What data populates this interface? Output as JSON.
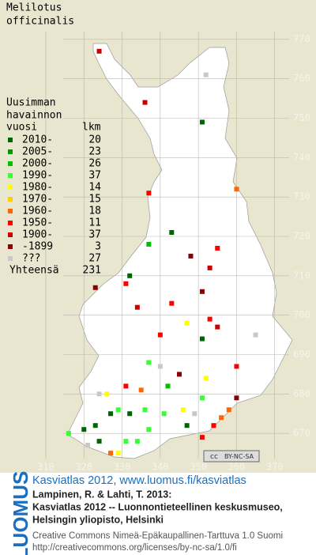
{
  "map": {
    "title": [
      "Melilotus",
      "officinalis"
    ],
    "xlim": [
      298,
      380
    ],
    "ylim": [
      660,
      780
    ],
    "xticks": [
      310,
      320,
      330,
      340,
      350,
      360,
      370
    ],
    "yticks": [
      670,
      680,
      690,
      700,
      710,
      720,
      730,
      740,
      750,
      760,
      770
    ],
    "grid": true,
    "legend": {
      "title": [
        "Uusimman",
        "havainnon",
        "vuosi"
      ],
      "count_header": "lkm",
      "items": [
        {
          "label": "2010-",
          "count": 20,
          "color": "#006400"
        },
        {
          "label": "2005-",
          "count": 23,
          "color": "#009900"
        },
        {
          "label": "2000-",
          "count": 26,
          "color": "#00c000"
        },
        {
          "label": "1990-",
          "count": 37,
          "color": "#33ff33"
        },
        {
          "label": "1980-",
          "count": 14,
          "color": "#ffff00"
        },
        {
          "label": "1970-",
          "count": 15,
          "color": "#ffcc00"
        },
        {
          "label": "1960-",
          "count": 18,
          "color": "#ff6600"
        },
        {
          "label": "1950-",
          "count": 11,
          "color": "#ff0000"
        },
        {
          "label": "1900-",
          "count": 37,
          "color": "#cc0000"
        },
        {
          "label": "-1899",
          "count": 3,
          "color": "#8b0000"
        },
        {
          "label": "???",
          "count": 27,
          "color": "#c8c8c8"
        }
      ],
      "total_label": "Yhteensä",
      "total": 231
    },
    "points": [
      [
        324,
        767,
        8
      ],
      [
        352,
        761,
        10
      ],
      [
        336,
        754,
        8
      ],
      [
        351,
        749,
        0
      ],
      [
        360,
        732,
        6
      ],
      [
        337,
        731,
        7
      ],
      [
        343,
        721,
        0
      ],
      [
        337,
        718,
        2
      ],
      [
        355,
        717,
        7
      ],
      [
        353,
        712,
        8
      ],
      [
        348,
        715,
        9
      ],
      [
        331,
        708,
        7
      ],
      [
        332,
        710,
        0
      ],
      [
        323,
        707,
        9
      ],
      [
        351,
        706,
        9
      ],
      [
        343,
        703,
        7
      ],
      [
        334,
        702,
        8
      ],
      [
        365,
        695,
        10
      ],
      [
        340,
        695,
        7
      ],
      [
        353,
        699,
        7
      ],
      [
        347,
        698,
        4
      ],
      [
        355,
        697,
        8
      ],
      [
        351,
        694,
        0
      ],
      [
        360,
        687,
        7
      ],
      [
        337,
        688,
        3
      ],
      [
        340,
        687,
        10
      ],
      [
        342,
        682,
        2
      ],
      [
        345,
        685,
        9
      ],
      [
        331,
        682,
        7
      ],
      [
        335,
        681,
        6
      ],
      [
        324,
        680,
        10
      ],
      [
        326,
        680,
        4
      ],
      [
        352,
        684,
        4
      ],
      [
        351,
        679,
        3
      ],
      [
        360,
        679,
        9
      ],
      [
        358,
        676,
        6
      ],
      [
        356,
        674,
        6
      ],
      [
        354,
        672,
        7
      ],
      [
        351,
        669,
        7
      ],
      [
        341,
        675,
        3
      ],
      [
        336,
        676,
        3
      ],
      [
        332,
        675,
        0
      ],
      [
        329,
        676,
        3
      ],
      [
        327,
        675,
        0
      ],
      [
        323,
        672,
        0
      ],
      [
        320,
        671,
        0
      ],
      [
        316,
        670,
        3
      ],
      [
        337,
        671,
        3
      ],
      [
        334,
        668,
        3
      ],
      [
        331,
        668,
        3
      ],
      [
        329,
        665,
        4
      ],
      [
        327,
        665,
        6
      ],
      [
        324,
        668,
        0
      ],
      [
        321,
        667,
        10
      ],
      [
        347,
        672,
        0
      ],
      [
        349,
        675,
        10
      ],
      [
        346,
        676,
        4
      ]
    ],
    "cc_badge": [
      "cc",
      "BY-NC-SA"
    ]
  },
  "footer": {
    "logo": "LUOMUS",
    "headline": "Kasviatlas 2012, www.luomus.fi/kasviatlas",
    "citation": [
      "Lampinen, R. & Lahti, T. 2013:",
      "Kasviatlas 2012 -- Luonnontieteellinen keskusmuseo,",
      "Helsingin yliopisto, Helsinki"
    ],
    "license": [
      "Creative Commons Nimeä-Epäkaupallinen-Tarttuva 1.0 Suomi",
      "http://creativecommons.org/licenses/by-nc-sa/1.0/fi"
    ]
  }
}
